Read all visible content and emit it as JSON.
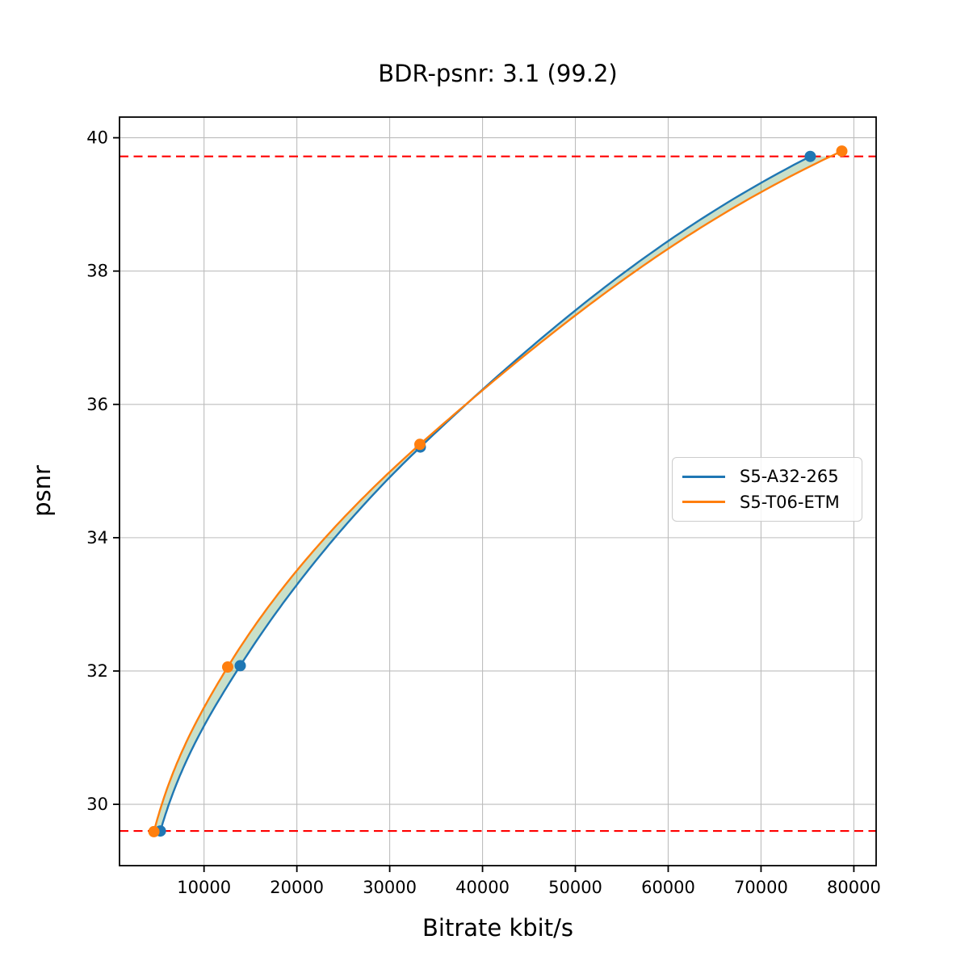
{
  "chart_data": {
    "type": "line",
    "title": "BDR-psnr: 3.1 (99.2)",
    "xlabel": "Bitrate kbit/s",
    "ylabel": "psnr",
    "xlim": [
      895,
      82400
    ],
    "ylim": [
      29.08,
      40.31
    ],
    "xticks": [
      10000,
      20000,
      30000,
      40000,
      50000,
      60000,
      70000,
      80000
    ],
    "yticks": [
      30,
      32,
      34,
      36,
      38,
      40
    ],
    "grid": true,
    "grid_color": "#bdbdbd",
    "spine_color": "#000000",
    "legend_position": "center right",
    "series": [
      {
        "name": "S5-A32-265",
        "color": "#1f77b4",
        "points": [
          [
            5300,
            29.6
          ],
          [
            13900,
            32.08
          ],
          [
            33300,
            35.36
          ],
          [
            75300,
            39.72
          ]
        ]
      },
      {
        "name": "S5-T06-ETM",
        "color": "#ff7f0e",
        "points": [
          [
            4600,
            29.59
          ],
          [
            12550,
            32.06
          ],
          [
            33250,
            35.4
          ],
          [
            78700,
            39.8
          ]
        ]
      }
    ],
    "hlines": {
      "values": [
        29.6,
        39.72
      ],
      "color": "#ff0000",
      "style": "dashed"
    },
    "fill_between": {
      "color": "#3c913c",
      "opacity": 0.28,
      "psnr_range": [
        29.6,
        39.72
      ]
    }
  }
}
